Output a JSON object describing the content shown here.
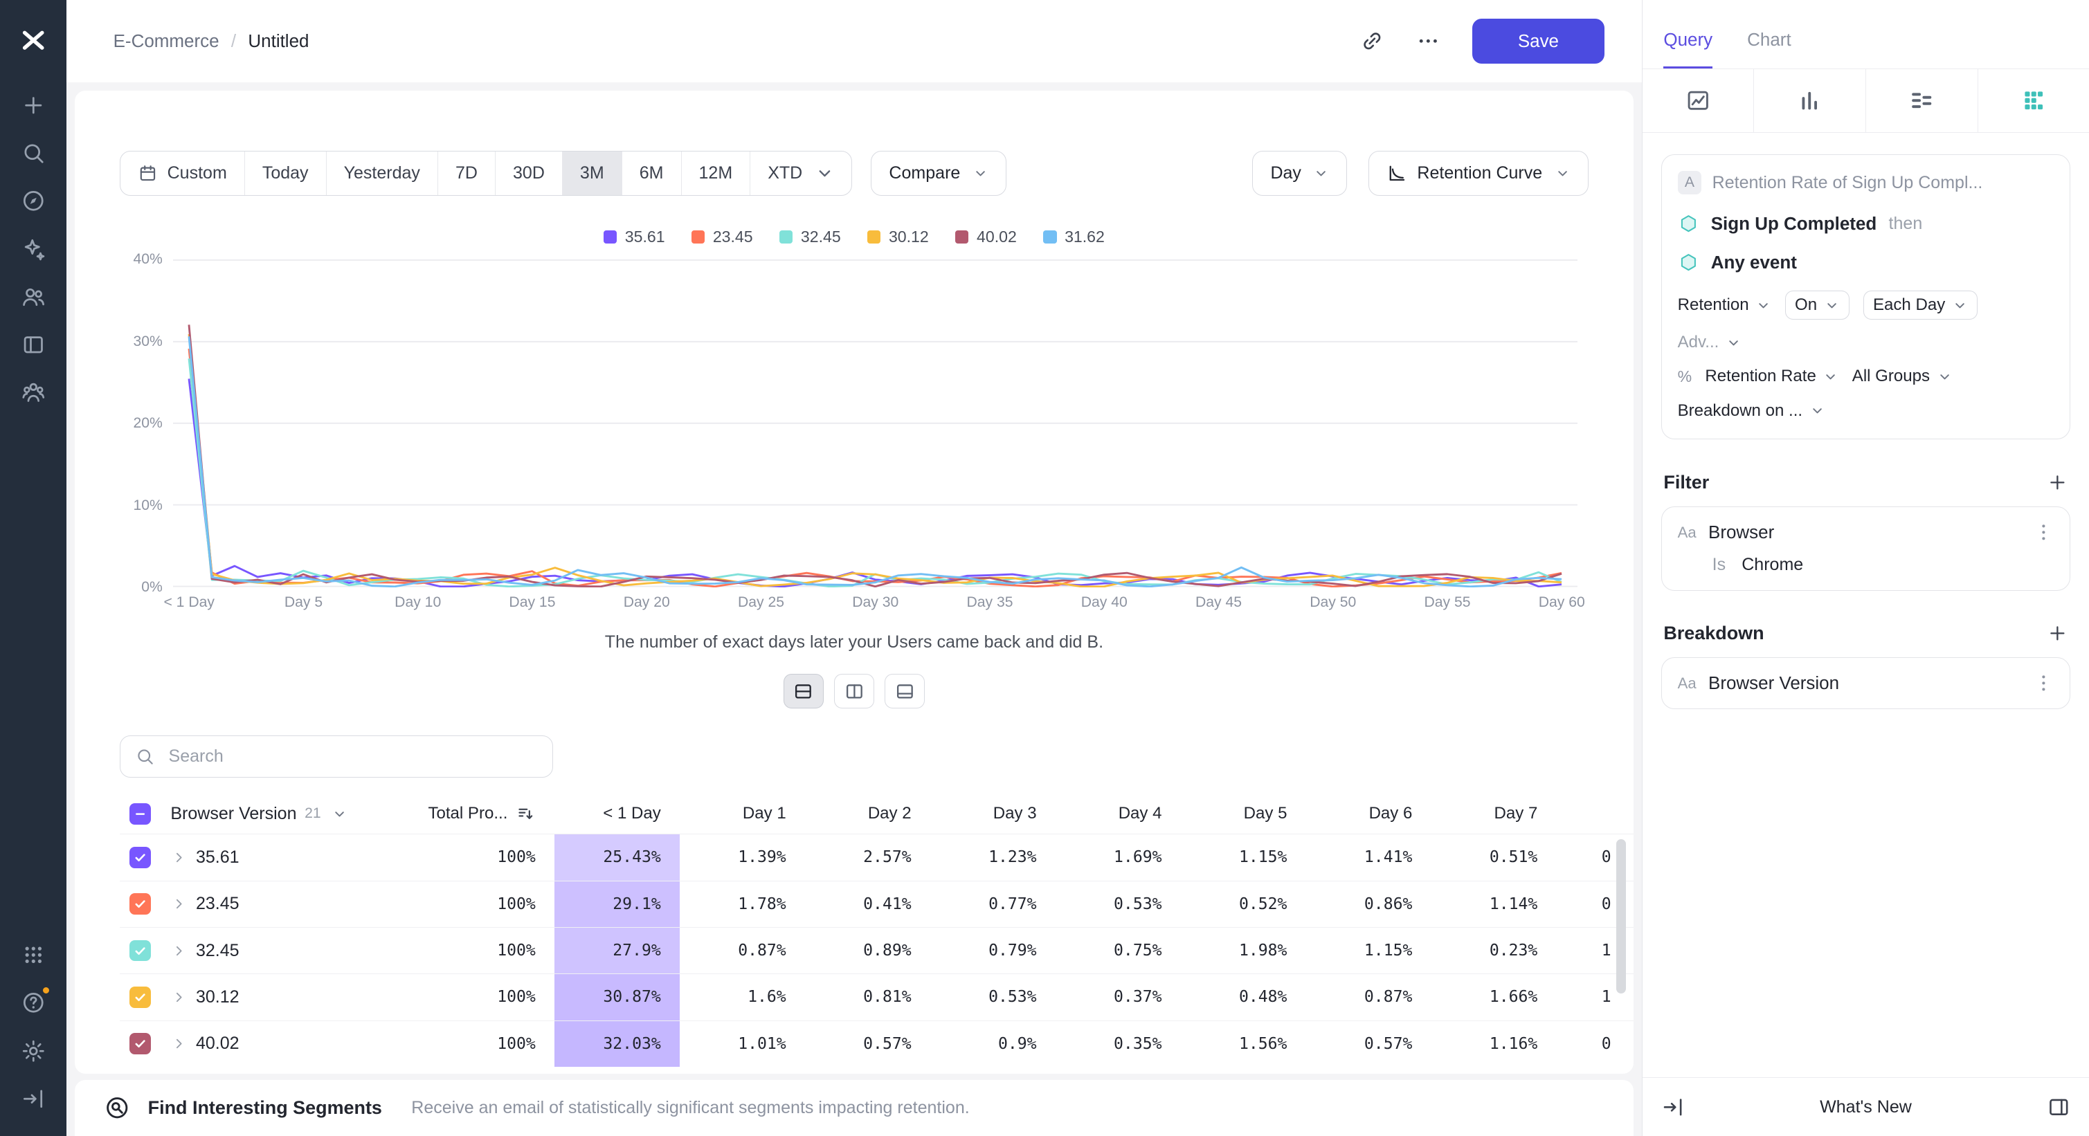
{
  "accent_colors": {
    "save_button": "#4b4be0",
    "active_tab": "#5b4de0",
    "heatmap_base": "#7856FF",
    "event_teal": "#45c4bc",
    "notification_dot": "#f6a21c"
  },
  "sidebar": {
    "top": [
      {
        "name": "mixpanel-logo",
        "glyph": "logo"
      },
      {
        "name": "create-icon",
        "glyph": "plus"
      },
      {
        "name": "search-icon",
        "glyph": "search"
      },
      {
        "name": "explore-icon",
        "glyph": "compass"
      },
      {
        "name": "signals-icon",
        "glyph": "sparkle"
      },
      {
        "name": "users-icon",
        "glyph": "users"
      },
      {
        "name": "boards-icon",
        "glyph": "board"
      },
      {
        "name": "cohorts-icon",
        "glyph": "cohorts"
      }
    ],
    "bottom": [
      {
        "name": "apps-grid-icon",
        "glyph": "grid"
      },
      {
        "name": "help-icon",
        "glyph": "help",
        "badge": true
      },
      {
        "name": "settings-icon",
        "glyph": "gear"
      },
      {
        "name": "collapse-sidebar-icon",
        "glyph": "exit"
      }
    ]
  },
  "header": {
    "breadcrumb": {
      "project": "E-Commerce",
      "separator": "/",
      "report": "Untitled"
    },
    "save_label": "Save"
  },
  "toolbar": {
    "ranges": [
      "Custom",
      "Today",
      "Yesterday",
      "7D",
      "30D",
      "3M",
      "6M",
      "12M",
      "XTD"
    ],
    "selected_range": "3M",
    "compare": "Compare",
    "granularity": "Day",
    "view_mode": "Retention Curve"
  },
  "chart_data": {
    "type": "line",
    "caption": "The number of exact days later your Users came back and did B.",
    "ylim": [
      0,
      40
    ],
    "y_ticks": [
      "40%",
      "30%",
      "20%",
      "10%",
      "0%"
    ],
    "x_ticks": [
      "< 1 Day",
      "Day 5",
      "Day 10",
      "Day 15",
      "Day 20",
      "Day 25",
      "Day 30",
      "Day 35",
      "Day 40",
      "Day 45",
      "Day 50",
      "Day 55",
      "Day 60"
    ],
    "x_tick_days": [
      0,
      5,
      10,
      15,
      20,
      25,
      30,
      35,
      40,
      45,
      50,
      55,
      60
    ],
    "x_max_day": 60,
    "grid": true,
    "legend_position": "top",
    "series": [
      {
        "name": "35.61",
        "color": "#7856FF",
        "values_day0_to_7": [
          25.43,
          1.39,
          2.57,
          1.23,
          1.69,
          1.15,
          1.41,
          0.51
        ]
      },
      {
        "name": "23.45",
        "color": "#FF7557",
        "values_day0_to_7": [
          29.1,
          1.78,
          0.41,
          0.77,
          0.53,
          0.52,
          0.86,
          1.14
        ]
      },
      {
        "name": "32.45",
        "color": "#80E1D9",
        "values_day0_to_7": [
          27.9,
          0.87,
          0.89,
          0.79,
          0.75,
          1.98,
          1.15,
          0.23
        ]
      },
      {
        "name": "30.12",
        "color": "#F8BC3C",
        "values_day0_to_7": [
          30.87,
          1.6,
          0.81,
          0.53,
          0.37,
          0.48,
          0.87,
          1.66
        ]
      },
      {
        "name": "40.02",
        "color": "#B2596E",
        "values_day0_to_7": [
          32.03,
          1.01,
          0.57,
          0.9,
          0.35,
          1.56,
          0.57,
          1.16
        ]
      },
      {
        "name": "31.62",
        "color": "#72BEF4",
        "values_day0_to_7": [
          30.6,
          1.2,
          0.8,
          0.6,
          0.9,
          1.1,
          0.7,
          0.8
        ]
      }
    ]
  },
  "view_toggle": [
    {
      "name": "layout-horizontal-split",
      "glyph": "split-h",
      "active": true
    },
    {
      "name": "layout-vertical-split",
      "glyph": "split-v",
      "active": false
    },
    {
      "name": "layout-bottom-drawer",
      "glyph": "drawer",
      "active": false
    }
  ],
  "table": {
    "search_placeholder": "Search",
    "group_header": "Browser Version",
    "group_count": "21",
    "total_header": "Total Pro...",
    "day_headers": [
      "< 1 Day",
      "Day 1",
      "Day 2",
      "Day 3",
      "Day 4",
      "Day 5",
      "Day 6",
      "Day 7"
    ],
    "rows": [
      {
        "label": "35.61",
        "color": "#7856FF",
        "total": "100%",
        "first_day": "25.43%",
        "days": [
          "1.39%",
          "2.57%",
          "1.23%",
          "1.69%",
          "1.15%",
          "1.41%",
          "0.51%"
        ],
        "clipped": "0"
      },
      {
        "label": "23.45",
        "color": "#FF7557",
        "total": "100%",
        "first_day": "29.1%",
        "days": [
          "1.78%",
          "0.41%",
          "0.77%",
          "0.53%",
          "0.52%",
          "0.86%",
          "1.14%"
        ],
        "clipped": "0"
      },
      {
        "label": "32.45",
        "color": "#80E1D9",
        "total": "100%",
        "first_day": "27.9%",
        "days": [
          "0.87%",
          "0.89%",
          "0.79%",
          "0.75%",
          "1.98%",
          "1.15%",
          "0.23%"
        ],
        "clipped": "1"
      },
      {
        "label": "30.12",
        "color": "#F8BC3C",
        "total": "100%",
        "first_day": "30.87%",
        "days": [
          "1.6%",
          "0.81%",
          "0.53%",
          "0.37%",
          "0.48%",
          "0.87%",
          "1.66%"
        ],
        "clipped": "1"
      },
      {
        "label": "40.02",
        "color": "#B2596E",
        "total": "100%",
        "first_day": "32.03%",
        "days": [
          "1.01%",
          "0.57%",
          "0.9%",
          "0.35%",
          "1.56%",
          "0.57%",
          "1.16%"
        ],
        "clipped": "0"
      }
    ]
  },
  "segments_bar": {
    "title": "Find Interesting Segments",
    "description": "Receive an email of statistically significant segments impacting retention."
  },
  "panel": {
    "tabs": [
      {
        "label": "Query",
        "active": true
      },
      {
        "label": "Chart",
        "active": false
      }
    ],
    "chart_types": [
      {
        "name": "insights-chart-type-icon",
        "glyph": "insights",
        "active": false
      },
      {
        "name": "bar-chart-type-icon",
        "glyph": "bars",
        "active": false
      },
      {
        "name": "flows-chart-type-icon",
        "glyph": "flows",
        "active": false
      },
      {
        "name": "retention-chart-type-icon",
        "glyph": "retgrid",
        "active": true
      }
    ],
    "query": {
      "badge": "A",
      "title": "Retention Rate of Sign Up Compl...",
      "first_event": "Sign Up Completed",
      "then_label": "then",
      "second_event": "Any event",
      "controls": {
        "retention": "Retention",
        "on": "On",
        "interval": "Each Day",
        "advanced": "Adv...",
        "metric_icon": "%",
        "metric": "Retention Rate",
        "groups": "All Groups",
        "breakdown_on": "Breakdown on ..."
      }
    },
    "filter": {
      "heading": "Filter",
      "type_badge": "Aa",
      "property": "Browser",
      "operator": "Is",
      "value": "Chrome"
    },
    "breakdown": {
      "heading": "Breakdown",
      "type_badge": "Aa",
      "property": "Browser Version"
    },
    "footer_whats_new": "What's New"
  }
}
